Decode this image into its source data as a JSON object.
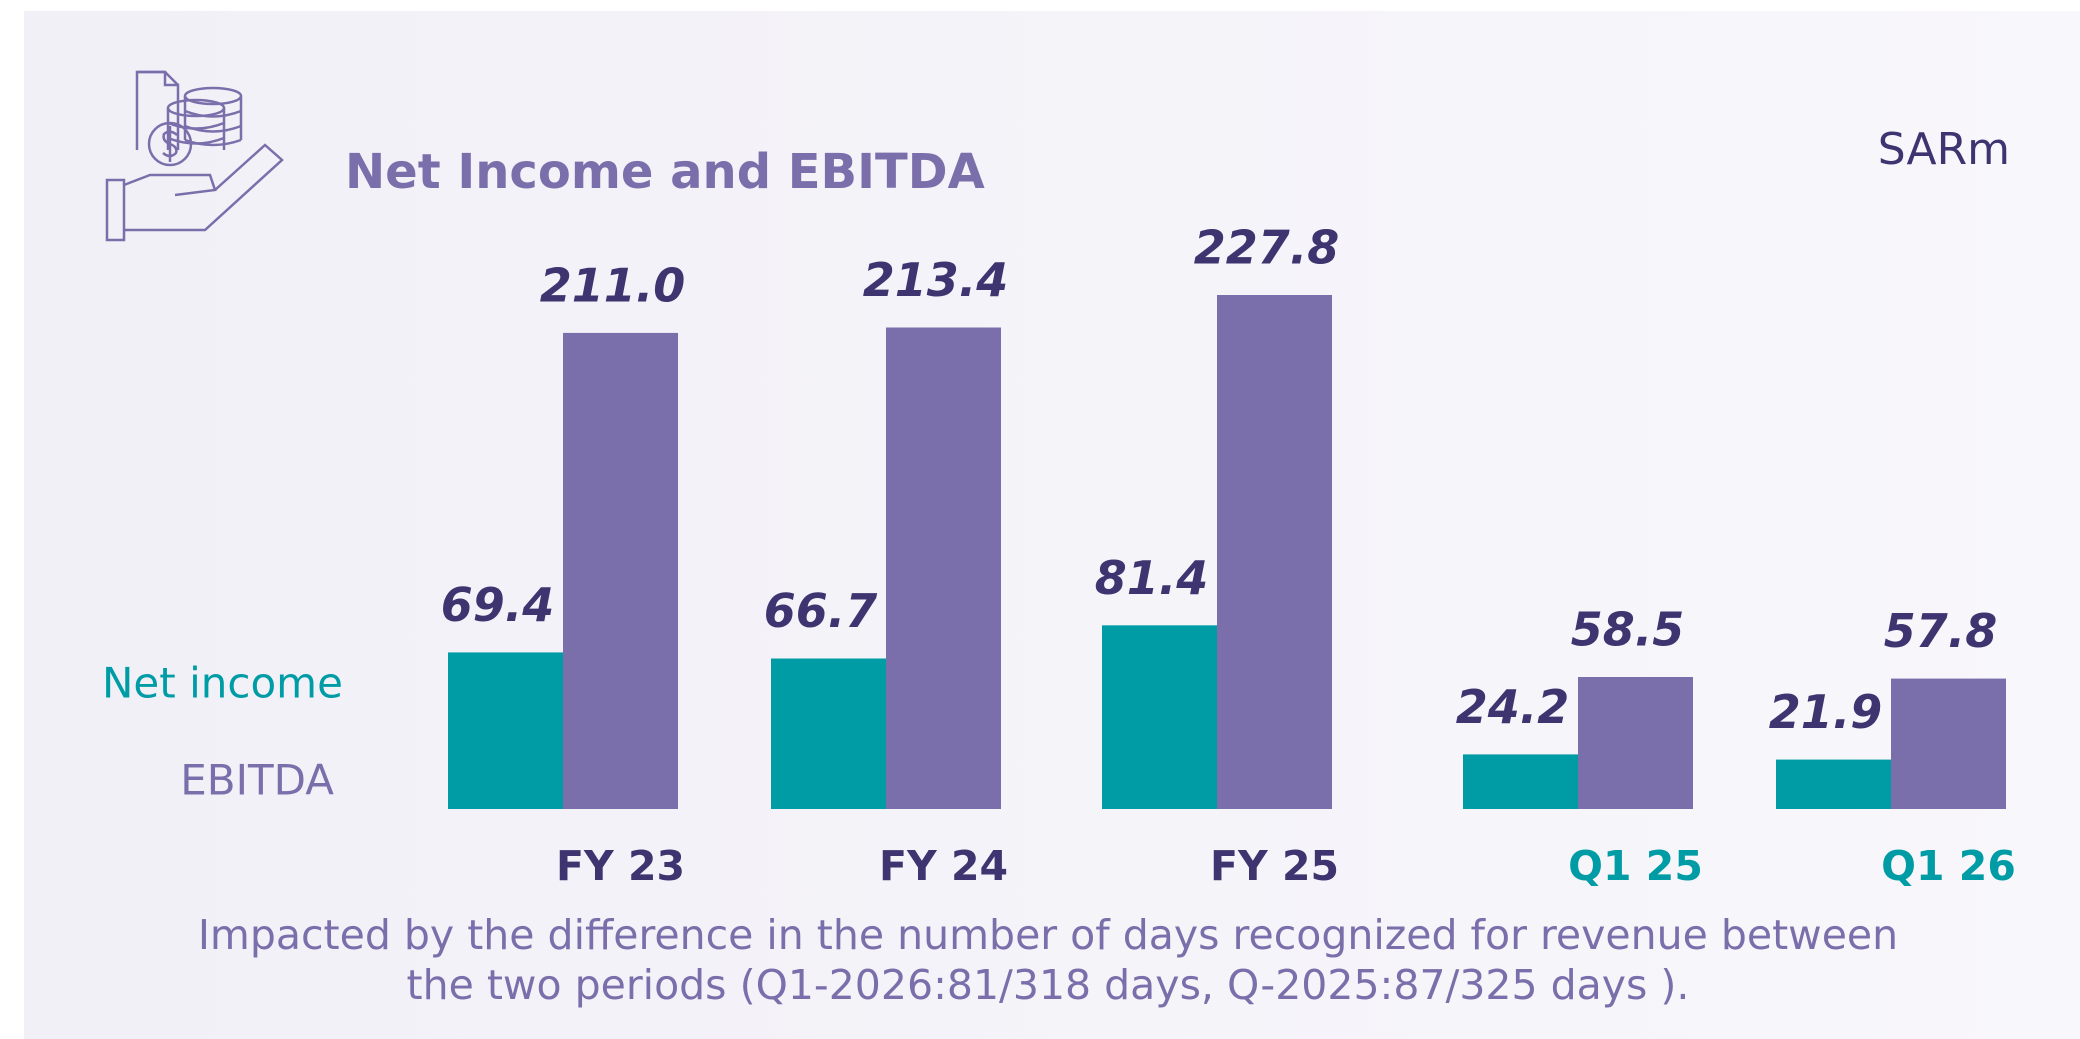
{
  "chart_data": {
    "type": "grouped_bar",
    "title": "Net Income and EBITDA",
    "unit": "SARm",
    "categories": [
      "FY 23",
      "FY 24",
      "FY 25",
      "Q1 25",
      "Q1 26"
    ],
    "category_colors": [
      "#3d3470",
      "#3d3470",
      "#3d3470",
      "#009ca6",
      "#009ca6"
    ],
    "series": [
      {
        "name": "Net income",
        "color": "#009ca6",
        "values": [
          69.4,
          66.7,
          81.4,
          24.2,
          21.9
        ]
      },
      {
        "name": "EBITDA",
        "color": "#7b6fab",
        "values": [
          211.0,
          213.4,
          227.8,
          58.5,
          57.8
        ],
        "value_labels": [
          "211.0",
          "213.4",
          "227.8",
          "58.5",
          "57.8"
        ]
      }
    ],
    "footnote": [
      "Impacted by the difference in the number of days recognized for revenue between",
      "the two periods  (Q1-2026:81/318 days, Q-2025:87/325 days )."
    ]
  }
}
